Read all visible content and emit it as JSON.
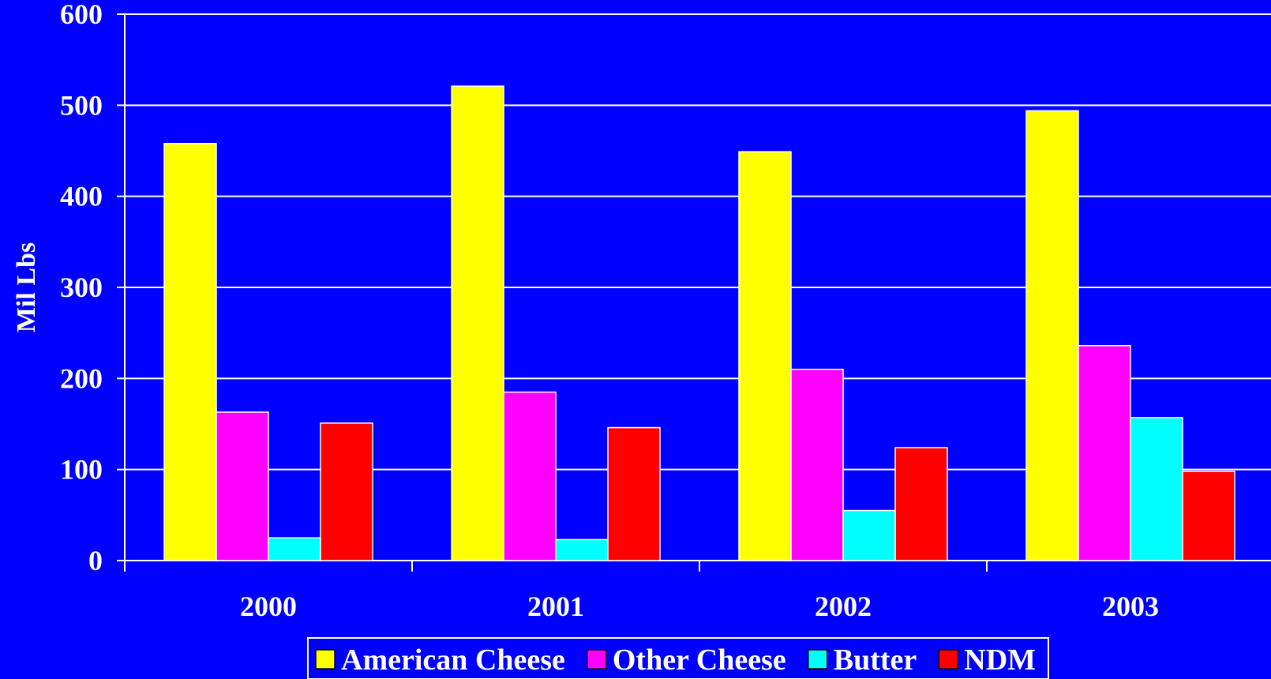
{
  "chart_data": {
    "type": "bar",
    "categories": [
      "2000",
      "2001",
      "2002",
      "2003"
    ],
    "series": [
      {
        "name": "American Cheese",
        "color": "#ffff00",
        "values": [
          458,
          521,
          449,
          494
        ]
      },
      {
        "name": "Other Cheese",
        "color": "#ff00ff",
        "values": [
          163,
          185,
          210,
          236
        ]
      },
      {
        "name": "Butter",
        "color": "#00ffff",
        "values": [
          25,
          23,
          55,
          157
        ]
      },
      {
        "name": "NDM",
        "color": "#ff0000",
        "values": [
          151,
          146,
          124,
          98
        ]
      }
    ],
    "title": "",
    "xlabel": "",
    "ylabel": "Mil Lbs",
    "ylim": [
      0,
      600
    ],
    "yticks": [
      0,
      100,
      200,
      300,
      400,
      500,
      600
    ],
    "grid": true,
    "legend": "bottom",
    "colors": {
      "background": "#0000ff",
      "text": "#ffffff",
      "grid": "#ffffff",
      "bar_edge": "#ffffff"
    }
  }
}
